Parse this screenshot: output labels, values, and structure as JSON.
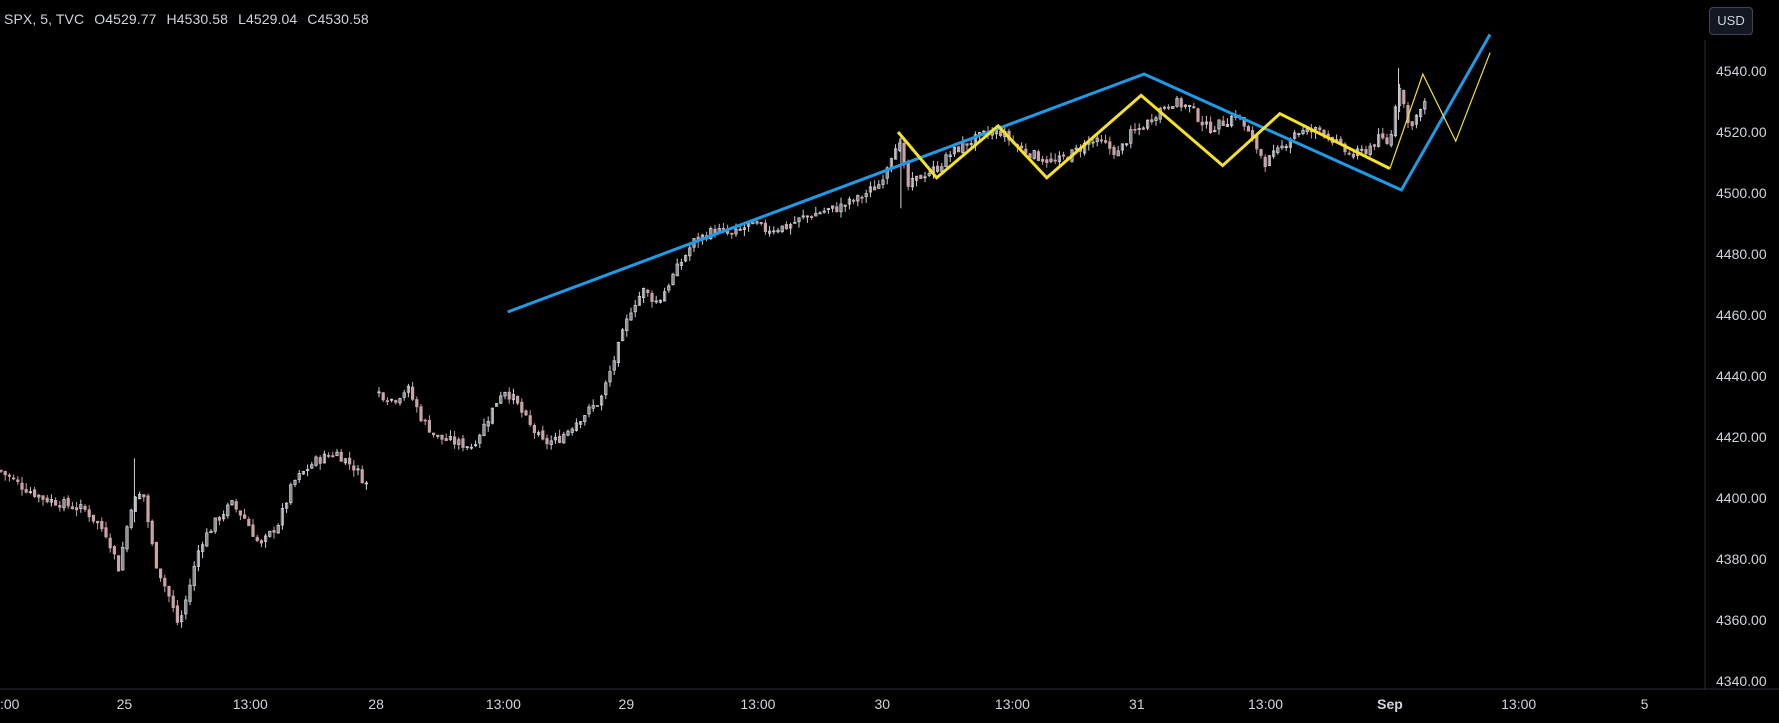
{
  "legend": {
    "symbol": "SPX, 5, TVC",
    "open_label": "O",
    "open": "4529.77",
    "high_label": "H",
    "high": "4530.58",
    "low_label": "L",
    "low": "4529.04",
    "close_label": "C",
    "close": "4530.58"
  },
  "currency_button": "USD",
  "colors": {
    "background": "#000000",
    "candle_up": "#cfd2d8",
    "candle_down": "#c9a3a8",
    "blue_line": "#1e9be6",
    "yellow_line": "#f5e12a",
    "axis_text": "#d1d4dc"
  },
  "chart_data": {
    "type": "candlestick",
    "timeframe": "5",
    "y_ticks": [
      "4540.00",
      "4520.00",
      "4500.00",
      "4480.00",
      "4460.00",
      "4440.00",
      "4420.00",
      "4400.00",
      "4380.00",
      "4360.00",
      "4340.00"
    ],
    "y_tick_values": [
      4540,
      4520,
      4500,
      4480,
      4460,
      4440,
      4420,
      4400,
      4380,
      4360,
      4340
    ],
    "ylim": [
      4338,
      4552
    ],
    "x_ticks": [
      {
        "label": ":00",
        "bold": false,
        "pos": 0.0
      },
      {
        "label": "25",
        "bold": false,
        "pos": 0.87
      },
      {
        "label": "13:00",
        "bold": false,
        "pos": 1.75
      },
      {
        "label": "28",
        "bold": false,
        "pos": 2.63
      },
      {
        "label": "13:00",
        "bold": false,
        "pos": 3.52
      },
      {
        "label": "29",
        "bold": false,
        "pos": 4.38
      },
      {
        "label": "13:00",
        "bold": false,
        "pos": 5.3
      },
      {
        "label": "30",
        "bold": false,
        "pos": 6.17
      },
      {
        "label": "13:00",
        "bold": false,
        "pos": 7.08
      },
      {
        "label": "31",
        "bold": false,
        "pos": 7.95
      },
      {
        "label": "13:00",
        "bold": false,
        "pos": 8.85
      },
      {
        "label": "Sep",
        "bold": true,
        "pos": 9.72
      },
      {
        "label": "13:00",
        "bold": false,
        "pos": 10.62
      },
      {
        "label": "5",
        "bold": false,
        "pos": 11.5
      }
    ],
    "price_path": [
      [
        0.0,
        4409
      ],
      [
        0.15,
        4404
      ],
      [
        0.3,
        4400
      ],
      [
        0.45,
        4398
      ],
      [
        0.6,
        4396
      ],
      [
        0.75,
        4388
      ],
      [
        0.83,
        4377
      ],
      [
        0.92,
        4398
      ],
      [
        1.0,
        4402
      ],
      [
        1.08,
        4380
      ],
      [
        1.18,
        4368
      ],
      [
        1.25,
        4358
      ],
      [
        1.32,
        4370
      ],
      [
        1.4,
        4385
      ],
      [
        1.52,
        4393
      ],
      [
        1.62,
        4398
      ],
      [
        1.72,
        4393
      ],
      [
        1.82,
        4384
      ],
      [
        1.95,
        4392
      ],
      [
        2.05,
        4405
      ],
      [
        2.2,
        4412
      ],
      [
        2.35,
        4415
      ],
      [
        2.48,
        4410
      ],
      [
        2.57,
        4404
      ],
      [
        2.63,
        4435
      ],
      [
        2.75,
        4432
      ],
      [
        2.85,
        4436
      ],
      [
        2.95,
        4426
      ],
      [
        3.05,
        4420
      ],
      [
        3.2,
        4418
      ],
      [
        3.3,
        4417
      ],
      [
        3.4,
        4425
      ],
      [
        3.52,
        4436
      ],
      [
        3.6,
        4432
      ],
      [
        3.7,
        4424
      ],
      [
        3.8,
        4418
      ],
      [
        3.9,
        4419
      ],
      [
        4.05,
        4426
      ],
      [
        4.2,
        4432
      ],
      [
        4.3,
        4446
      ],
      [
        4.42,
        4463
      ],
      [
        4.5,
        4468
      ],
      [
        4.6,
        4464
      ],
      [
        4.72,
        4474
      ],
      [
        4.85,
        4484
      ],
      [
        5.0,
        4488
      ],
      [
        5.12,
        4486
      ],
      [
        5.25,
        4490
      ],
      [
        5.35,
        4488
      ],
      [
        5.5,
        4489
      ],
      [
        5.62,
        4492
      ],
      [
        5.75,
        4494
      ],
      [
        5.85,
        4495
      ],
      [
        6.0,
        4498
      ],
      [
        6.15,
        4503
      ],
      [
        6.28,
        4518
      ],
      [
        6.35,
        4502
      ],
      [
        6.45,
        4506
      ],
      [
        6.55,
        4508
      ],
      [
        6.65,
        4513
      ],
      [
        6.75,
        4516
      ],
      [
        6.88,
        4519
      ],
      [
        7.0,
        4520
      ],
      [
        7.12,
        4515
      ],
      [
        7.25,
        4512
      ],
      [
        7.38,
        4510
      ],
      [
        7.5,
        4513
      ],
      [
        7.62,
        4517
      ],
      [
        7.72,
        4516
      ],
      [
        7.82,
        4513
      ],
      [
        7.9,
        4519
      ],
      [
        8.0,
        4522
      ],
      [
        8.1,
        4527
      ],
      [
        8.2,
        4530
      ],
      [
        8.32,
        4528
      ],
      [
        8.45,
        4521
      ],
      [
        8.55,
        4523
      ],
      [
        8.65,
        4526
      ],
      [
        8.75,
        4518
      ],
      [
        8.85,
        4510
      ],
      [
        8.95,
        4514
      ],
      [
        9.05,
        4520
      ],
      [
        9.15,
        4520
      ],
      [
        9.25,
        4521
      ],
      [
        9.35,
        4516
      ],
      [
        9.45,
        4512
      ],
      [
        9.55,
        4514
      ],
      [
        9.65,
        4518
      ],
      [
        9.72,
        4516
      ],
      [
        9.78,
        4537
      ],
      [
        9.85,
        4522
      ],
      [
        9.92,
        4526
      ],
      [
        9.98,
        4530
      ]
    ],
    "annotations": [
      {
        "type": "trendline",
        "color": "blue",
        "points": [
          [
            3.55,
            4461
          ],
          [
            8.0,
            4539
          ],
          [
            9.8,
            4501
          ],
          [
            10.42,
            4552
          ]
        ]
      },
      {
        "type": "zigzag",
        "color": "yellow",
        "points": [
          [
            6.28,
            4520
          ],
          [
            6.55,
            4505
          ],
          [
            6.98,
            4522
          ],
          [
            7.32,
            4505
          ],
          [
            7.98,
            4532
          ],
          [
            8.55,
            4509
          ],
          [
            8.95,
            4526
          ],
          [
            9.72,
            4508
          ]
        ]
      },
      {
        "type": "projection",
        "color": "yellow_thin",
        "points": [
          [
            9.72,
            4508
          ],
          [
            9.95,
            4539
          ],
          [
            10.18,
            4517
          ],
          [
            10.42,
            4546
          ]
        ]
      }
    ]
  }
}
